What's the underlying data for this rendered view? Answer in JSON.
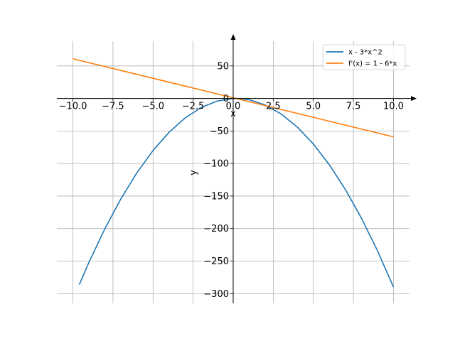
{
  "chart_data": {
    "type": "line",
    "xlabel": "x",
    "ylabel": "y",
    "xlim": [
      -11.0,
      11.0
    ],
    "ylim": [
      -315,
      88
    ],
    "xticks": [
      -10.0,
      -7.5,
      -5.0,
      -2.5,
      0.0,
      2.5,
      5.0,
      7.5,
      10.0
    ],
    "xtick_labels": [
      "−10.0",
      "−7.5",
      "−5.0",
      "−2.5",
      "0.0",
      "2.5",
      "5.0",
      "7.5",
      "10.0"
    ],
    "yticks": [
      50,
      0,
      -50,
      -100,
      -150,
      -200,
      -250,
      -300
    ],
    "ytick_labels": [
      "50",
      "0",
      "−50",
      "−100",
      "−150",
      "−200",
      "−250",
      "−300"
    ],
    "grid": true,
    "legend_position": "top-right",
    "series": [
      {
        "name": "x - 3*x^2",
        "color": "#1f77b4",
        "x": [
          -9.6,
          -9.0,
          -8.0,
          -7.0,
          -6.0,
          -5.0,
          -4.0,
          -3.0,
          -2.0,
          -1.0,
          0.0,
          0.5,
          1.0,
          2.0,
          3.0,
          4.0,
          5.0,
          6.0,
          7.0,
          8.0,
          9.0,
          10.0
        ],
        "y": [
          -286.08,
          -252.0,
          -200.0,
          -154.0,
          -114.0,
          -80.0,
          -52.0,
          -30.0,
          -14.0,
          -4.0,
          0.0,
          -0.25,
          -2.0,
          -10.0,
          -24.0,
          -44.0,
          -70.0,
          -102.0,
          -140.0,
          -184.0,
          -234.0,
          -290.0
        ]
      },
      {
        "name": "f'(x) = 1 - 6*x",
        "color": "#ff7f0e",
        "x": [
          -10.0,
          10.0
        ],
        "y": [
          61.0,
          -59.0
        ]
      }
    ]
  }
}
